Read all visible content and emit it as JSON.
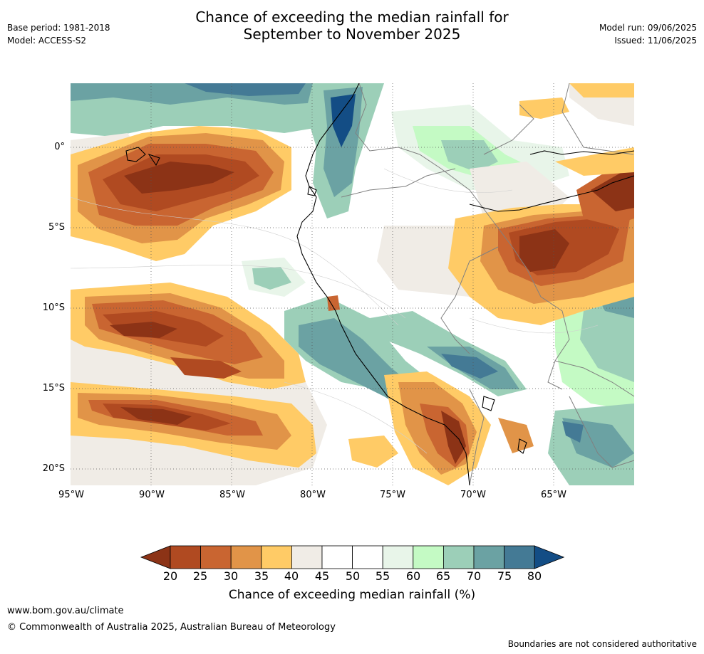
{
  "title": {
    "line1": "Chance of exceeding the median rainfall for",
    "line2": "September to November 2025"
  },
  "meta": {
    "base_period": "Base period: 1981-2018",
    "model": "Model: ACCESS-S2",
    "model_run": "Model run: 09/06/2025",
    "issued": "Issued: 11/06/2025"
  },
  "axes": {
    "lat_ticks": [
      "0°",
      "5°S",
      "10°S",
      "15°S",
      "20°S"
    ],
    "lon_ticks": [
      "95°W",
      "90°W",
      "85°W",
      "80°W",
      "75°W",
      "70°W",
      "65°W"
    ]
  },
  "colorbar": {
    "title": "Chance of exceeding median rainfall (%)",
    "labels": [
      "20",
      "25",
      "30",
      "35",
      "40",
      "45",
      "50",
      "55",
      "60",
      "65",
      "70",
      "75",
      "80"
    ],
    "colors": [
      "#8c3316",
      "#b04a21",
      "#c96531",
      "#e19448",
      "#ffcb66",
      "#f0ece6",
      "#ffffff",
      "#ffffff",
      "#e8f5e9",
      "#c4fac4",
      "#9ccfb8",
      "#6ba2a3",
      "#447a95",
      "#134d85"
    ]
  },
  "footer": {
    "url": "www.bom.gov.au/climate",
    "copyright": "© Commonwealth of Australia 2025, Australian Bureau of Meteorology",
    "note": "Boundaries are not considered authoritative"
  }
}
